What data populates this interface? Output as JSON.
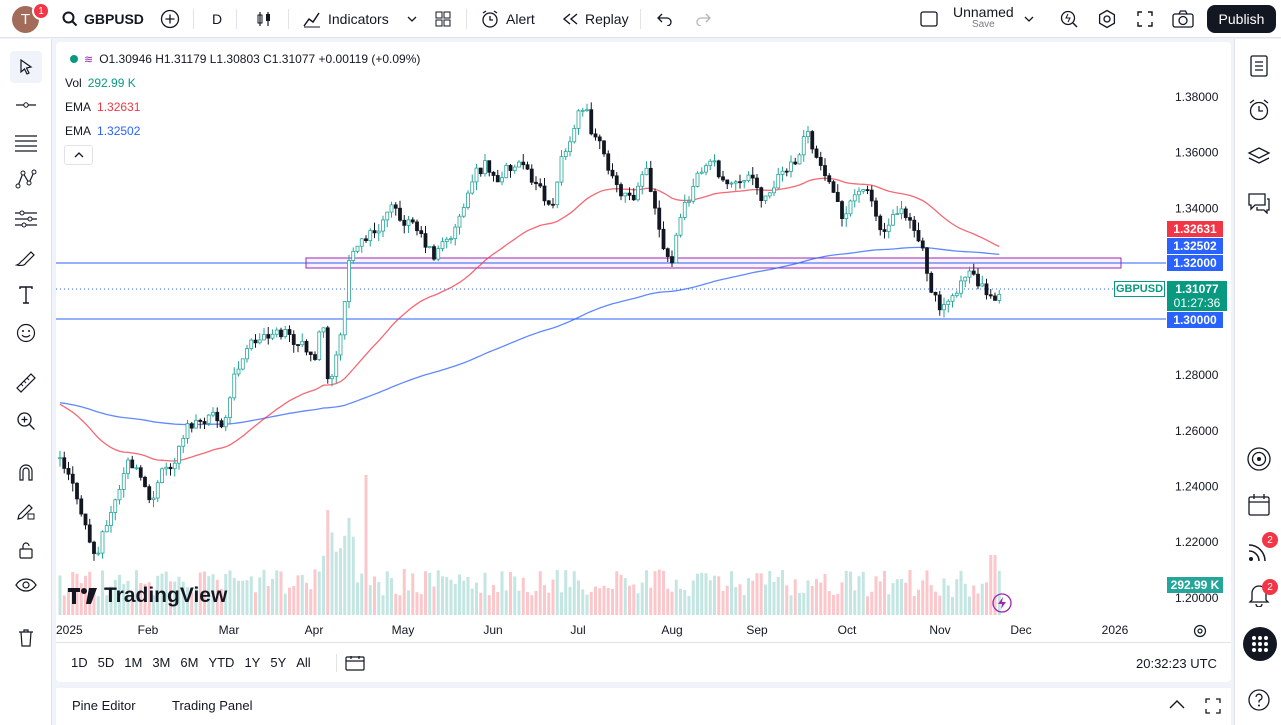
{
  "header": {
    "avatar_letter": "T",
    "notification_count": "1",
    "symbol": "GBPUSD",
    "interval": "D",
    "indicators_label": "Indicators",
    "alert_label": "Alert",
    "replay_label": "Replay",
    "layout_name": "Unnamed",
    "layout_save": "Save",
    "publish_label": "Publish"
  },
  "legend": {
    "ohlc": "O1.30946  H1.31179  L1.30803  C1.31077  +0.00119 (+0.09%)",
    "vol_label": "Vol",
    "vol_value": "292.99 K",
    "ema1_label": "EMA",
    "ema1_value": "1.32631",
    "ema2_label": "EMA",
    "ema2_value": "1.32502"
  },
  "price_axis": {
    "ticks": [
      "1.38000",
      "1.36000",
      "1.34000",
      "1.32000",
      "1.30000",
      "1.28000",
      "1.26000",
      "1.24000",
      "1.22000",
      "1.20000"
    ],
    "ema1_tag": "1.32631",
    "ema2_tag": "1.32502",
    "level_upper_tag": "1.32000",
    "level_lower_tag": "1.30000",
    "symbol_tag": "GBPUSD",
    "last_price": "1.31077",
    "countdown": "01:27:36",
    "volume_tag": "292.99 K"
  },
  "time_axis": {
    "labels": [
      "2025",
      "Feb",
      "Mar",
      "Apr",
      "May",
      "Jun",
      "Jul",
      "Aug",
      "Sep",
      "Oct",
      "Nov",
      "Dec",
      "2026"
    ]
  },
  "watermark": "TradingView",
  "ranges": [
    "1D",
    "5D",
    "1M",
    "3M",
    "6M",
    "YTD",
    "1Y",
    "5Y",
    "All"
  ],
  "clock": "20:32:23 UTC",
  "bottom_tabs": [
    "Pine Editor",
    "Trading Panel"
  ],
  "right_badges": [
    "2",
    "2"
  ],
  "colors": {
    "up": "#26a69a",
    "down": "#131722",
    "ema_fast": "#f23645",
    "ema_slow": "#2962ff",
    "level_line": "#2962ff",
    "zone": "#9c27b0"
  }
}
